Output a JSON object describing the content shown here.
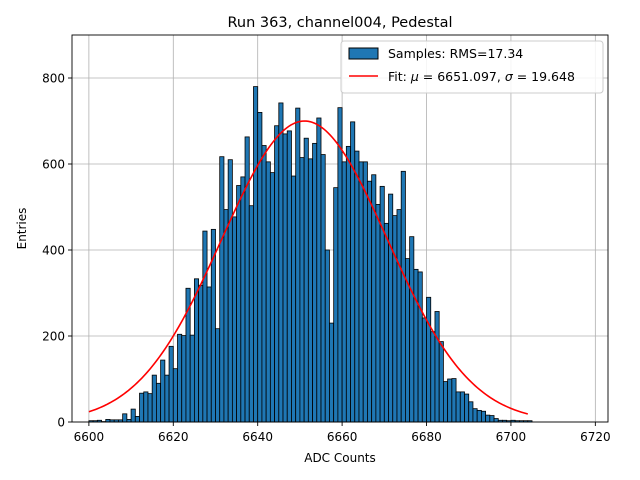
{
  "chart_data": {
    "type": "bar",
    "title": "Run 363, channel004, Pedestal",
    "xlabel": "ADC Counts",
    "ylabel": "Entries",
    "xlim": [
      6596,
      6723
    ],
    "ylim": [
      0,
      900
    ],
    "grid": true,
    "xticks": [
      6600,
      6620,
      6640,
      6660,
      6680,
      6700,
      6720
    ],
    "yticks": [
      0,
      200,
      400,
      600,
      800
    ],
    "bin_width": 1,
    "bin_start": 6600,
    "values": [
      3,
      3,
      4,
      1,
      6,
      5,
      5,
      5,
      19,
      6,
      30,
      13,
      67,
      70,
      66,
      109,
      90,
      144,
      109,
      176,
      124,
      204,
      201,
      311,
      202,
      333,
      318,
      444,
      314,
      448,
      217,
      617,
      494,
      610,
      477,
      550,
      570,
      663,
      503,
      780,
      720,
      643,
      605,
      580,
      689,
      742,
      670,
      677,
      572,
      730,
      615,
      660,
      612,
      648,
      707,
      622,
      400,
      230,
      545,
      731,
      605,
      641,
      698,
      630,
      605,
      605,
      560,
      575,
      506,
      548,
      462,
      530,
      480,
      494,
      583,
      380,
      431,
      355,
      349,
      242,
      290,
      210,
      257,
      187,
      94,
      100,
      101,
      70,
      70,
      65,
      47,
      31,
      27,
      25,
      16,
      15,
      8,
      4,
      4,
      3,
      4,
      3,
      3,
      3,
      3
    ],
    "legend": {
      "placement": "upper right",
      "hist_label": "Samples: RMS=17.34",
      "fit_label_prefix": "Fit: ",
      "mu_symbol": "μ",
      "mu_text": " = 6651.097, ",
      "sigma_symbol": "σ",
      "sigma_text": " = 19.648"
    },
    "fit": {
      "type": "gaussian",
      "mean": 6651.097,
      "sigma": 19.648,
      "amplitude": 700,
      "x_range": [
        6600,
        6704
      ]
    },
    "colors": {
      "bar_fill": "#1f77b4",
      "bar_edge": "#000000",
      "fit_line": "#ff0000",
      "grid": "#b0b0b0"
    }
  }
}
